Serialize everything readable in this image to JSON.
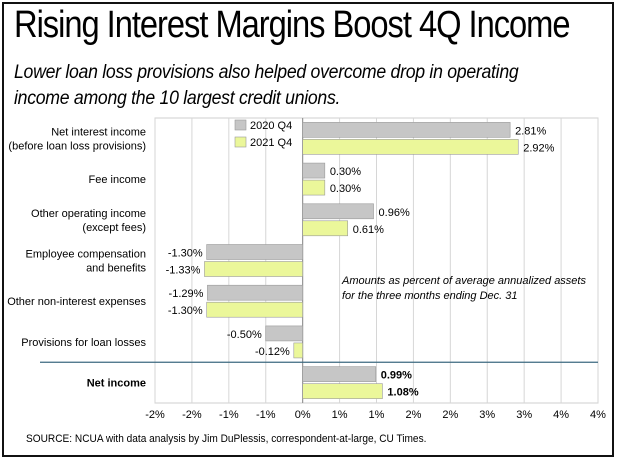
{
  "header": {
    "title": "Rising Interest Margins Boost 4Q Income",
    "subtitle": "Lower loan loss provisions also helped overcome drop in operating income among the 10 largest credit unions."
  },
  "footer": {
    "source": "SOURCE: NCUA with data analysis by Jim DuPlessis, correspondent-at-large, CU Times."
  },
  "chart_data": {
    "type": "bar",
    "orientation": "horizontal",
    "categories": [
      [
        "Net interest income",
        "(before loan loss provisions)"
      ],
      [
        "Fee income"
      ],
      [
        "Other operating income",
        "(except fees)"
      ],
      [
        "Employee compensation",
        "and benefits"
      ],
      [
        "Other non-interest expenses"
      ],
      [
        "Provisions for loan losses"
      ],
      [
        "Net income"
      ]
    ],
    "series": [
      {
        "name": "2020 Q4",
        "color": "#c6c6c6",
        "values": [
          2.81,
          0.3,
          0.96,
          -1.3,
          -1.29,
          -0.5,
          0.99
        ],
        "labels": [
          "2.81%",
          "0.30%",
          "0.96%",
          "-1.30%",
          "-1.29%",
          "-0.50%",
          "0.99%"
        ]
      },
      {
        "name": "2021 Q4",
        "color": "#ebf79a",
        "values": [
          2.92,
          0.3,
          0.61,
          -1.33,
          -1.3,
          -0.12,
          1.08
        ],
        "labels": [
          "2.92%",
          "0.30%",
          "0.61%",
          "-1.33%",
          "-1.30%",
          "-0.12%",
          "1.08%"
        ]
      }
    ],
    "xlim": [
      -2,
      4
    ],
    "ticks": [
      -2,
      -1.5,
      -1,
      -0.5,
      0,
      0.5,
      1,
      1.5,
      2,
      2.5,
      3,
      3.5,
      4
    ],
    "tick_labels": [
      "-2%",
      "-2%",
      "-1%",
      "-1%",
      "0%",
      "1%",
      "1%",
      "2%",
      "2%",
      "3%",
      "3%",
      "4%",
      "4%"
    ],
    "annotation": [
      "Amounts as percent of average annualized assets",
      "for the three months ending Dec. 31"
    ],
    "legend": "top",
    "separator_before_category": 6,
    "bold_category": 6,
    "accent_line_color": "#3d6a80"
  }
}
